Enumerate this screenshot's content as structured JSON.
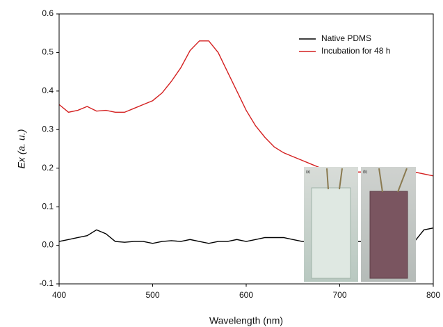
{
  "chart_data": {
    "type": "line",
    "x_label": "Wavelength (nm)",
    "y_label": "Ex (a. u.)",
    "x": [
      400,
      410,
      420,
      430,
      440,
      450,
      460,
      470,
      480,
      490,
      500,
      510,
      520,
      530,
      540,
      550,
      560,
      570,
      580,
      590,
      600,
      610,
      620,
      630,
      640,
      650,
      660,
      670,
      680,
      690,
      700,
      710,
      720,
      730,
      740,
      750,
      760,
      770,
      780,
      790,
      800
    ],
    "series": [
      {
        "name": "Native PDMS",
        "color": "#000000",
        "values": [
          0.01,
          0.015,
          0.02,
          0.025,
          0.04,
          0.03,
          0.01,
          0.008,
          0.01,
          0.01,
          0.005,
          0.01,
          0.012,
          0.01,
          0.015,
          0.01,
          0.005,
          0.01,
          0.01,
          0.015,
          0.01,
          0.015,
          0.02,
          0.02,
          0.02,
          0.015,
          0.01,
          0.01,
          0.01,
          0.01,
          0.01,
          0.01,
          0.01,
          0.01,
          0.01,
          0.01,
          0.01,
          0.01,
          0.01,
          0.04,
          0.045
        ]
      },
      {
        "name": "Incubation for 48 h",
        "color": "#d42020",
        "values": [
          0.365,
          0.345,
          0.35,
          0.36,
          0.348,
          0.35,
          0.345,
          0.345,
          0.355,
          0.365,
          0.375,
          0.395,
          0.425,
          0.46,
          0.505,
          0.53,
          0.53,
          0.5,
          0.45,
          0.4,
          0.35,
          0.31,
          0.28,
          0.255,
          0.24,
          0.23,
          0.22,
          0.21,
          0.2,
          0.195,
          0.19,
          0.19,
          0.19,
          0.19,
          0.19,
          0.19,
          0.19,
          0.19,
          0.19,
          0.185,
          0.18
        ]
      }
    ],
    "xlim": [
      400,
      800
    ],
    "xticks": [
      400,
      500,
      600,
      700,
      800
    ],
    "ylim": [
      -0.1,
      0.6
    ],
    "yticks": [
      -0.1,
      {
        "value": 0,
        "label": "0.0"
      },
      0.1,
      0.2,
      0.3,
      0.4,
      0.5,
      0.6
    ],
    "legend_position": "upper right",
    "inset_labels": [
      "(a)",
      "(b)"
    ]
  }
}
